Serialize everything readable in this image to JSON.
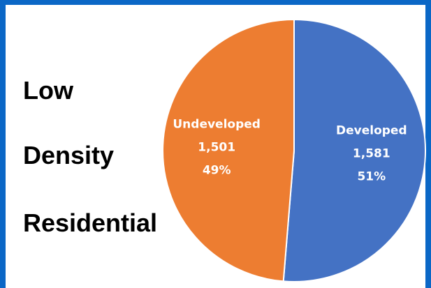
{
  "side_label": [
    "Low",
    "Density",
    "Residential"
  ],
  "colors": {
    "frame": "#0b67c6",
    "developed": "#4472c4",
    "undeveloped": "#ed7d31",
    "label_text": "#ffffff"
  },
  "chart_data": {
    "type": "pie",
    "slices": [
      {
        "label": "Developed",
        "value": 1581,
        "value_text": "1,581",
        "percent_text": "51%",
        "color": "#4472c4"
      },
      {
        "label": "Undeveloped",
        "value": 1501,
        "value_text": "1,501",
        "percent_text": "49%",
        "color": "#ed7d31"
      }
    ],
    "start_angle_deg": 0,
    "direction": "clockwise",
    "legend": "none"
  }
}
